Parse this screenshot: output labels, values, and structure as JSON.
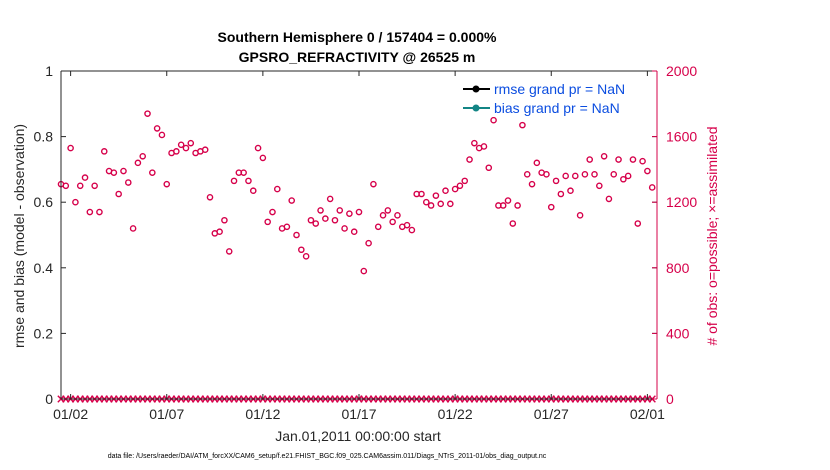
{
  "chart_data": {
    "type": "scatter",
    "title": "Southern Hemisphere 0 / 157404 = 0.000%",
    "subtitle": "GPSRO_REFRACTIVITY @ 26525 m",
    "xlabel": "Jan.01,2011 00:00:00 start",
    "ylabel": "rmse and bias (model - observation)",
    "y2label": "# of obs: o=possible; ×=assimilated",
    "footnote": "data file: /Users/raeder/DAI/ATM_forcXX/CAM6_setup/f.e21.FHIST_BGC.f09_025.CAM6assim.011/Diags_NTrS_2011-01/obs_diag_output.nc",
    "xlim": [
      0.5,
      31.5
    ],
    "ylim": [
      0,
      1
    ],
    "y2lim": [
      0,
      2000
    ],
    "xtick_values": [
      1,
      6,
      11,
      16,
      21,
      26,
      31
    ],
    "xtick_labels": [
      "01/02",
      "01/07",
      "01/12",
      "01/17",
      "01/22",
      "01/27",
      "02/01"
    ],
    "ytick_labels": [
      "0",
      "0.2",
      "0.4",
      "0.6",
      "0.8",
      "1"
    ],
    "y2tick_labels": [
      "0",
      "400",
      "800",
      "1200",
      "1600",
      "2000"
    ],
    "grid": false,
    "legend_position": "top-right",
    "legend": [
      {
        "label": "rmse grand pr = NaN",
        "color": "#000000"
      },
      {
        "label": "bias grand pr = NaN",
        "color": "#138585"
      }
    ],
    "colors": {
      "obs": "#d6004a",
      "rmse": "#000000",
      "bias": "#138585"
    },
    "series": [
      {
        "name": "o=possible",
        "axis": "right",
        "marker": "circle",
        "x": [
          0.5,
          0.75,
          1.0,
          1.25,
          1.5,
          1.75,
          2.0,
          2.25,
          2.5,
          2.75,
          3.0,
          3.25,
          3.5,
          3.75,
          4.0,
          4.25,
          4.5,
          4.75,
          5.0,
          5.25,
          5.5,
          5.75,
          6.0,
          6.25,
          6.5,
          6.75,
          7.0,
          7.25,
          7.5,
          7.75,
          8.0,
          8.25,
          8.5,
          8.75,
          9.0,
          9.25,
          9.5,
          9.75,
          10.0,
          10.25,
          10.5,
          10.75,
          11.0,
          11.25,
          11.5,
          11.75,
          12.0,
          12.25,
          12.5,
          12.75,
          13.0,
          13.25,
          13.5,
          13.75,
          14.0,
          14.25,
          14.5,
          14.75,
          15.0,
          15.25,
          15.5,
          15.75,
          16.0,
          16.25,
          16.5,
          16.75,
          17.0,
          17.25,
          17.5,
          17.75,
          18.0,
          18.25,
          18.5,
          18.75,
          19.0,
          19.25,
          19.5,
          19.75,
          20.0,
          20.25,
          20.5,
          20.75,
          21.0,
          21.25,
          21.5,
          21.75,
          22.0,
          22.25,
          22.5,
          22.75,
          23.0,
          23.25,
          23.5,
          23.75,
          24.0,
          24.25,
          24.5,
          24.75,
          25.0,
          25.25,
          25.5,
          25.75,
          26.0,
          26.25,
          26.5,
          26.75,
          27.0,
          27.25,
          27.5,
          27.75,
          28.0,
          28.25,
          28.5,
          28.75,
          29.0,
          29.25,
          29.5,
          29.75,
          30.0,
          30.25,
          30.5,
          30.75,
          31.0,
          31.25
        ],
        "y": [
          1310,
          1300,
          1530,
          1200,
          1300,
          1350,
          1140,
          1300,
          1140,
          1510,
          1390,
          1380,
          1250,
          1390,
          1320,
          1040,
          1440,
          1480,
          1740,
          1380,
          1650,
          1610,
          1310,
          1500,
          1510,
          1550,
          1530,
          1560,
          1500,
          1510,
          1520,
          1230,
          1010,
          1020,
          1090,
          900,
          1330,
          1380,
          1380,
          1330,
          1270,
          1530,
          1470,
          1080,
          1140,
          1280,
          1040,
          1050,
          1210,
          1000,
          910,
          870,
          1090,
          1070,
          1150,
          1100,
          1220,
          1090,
          1150,
          1040,
          1130,
          1020,
          1140,
          780,
          950,
          1310,
          1050,
          1120,
          1150,
          1080,
          1120,
          1050,
          1060,
          1030,
          1250,
          1250,
          1200,
          1180,
          1240,
          1190,
          1270,
          1190,
          1280,
          1300,
          1330,
          1460,
          1560,
          1530,
          1540,
          1410,
          1700,
          1180,
          1180,
          1210,
          1070,
          1180,
          1670,
          1370,
          1310,
          1440,
          1380,
          1370,
          1170,
          1330,
          1250,
          1360,
          1270,
          1360,
          1120,
          1370,
          1460,
          1370,
          1300,
          1480,
          1220,
          1370,
          1460,
          1340,
          1360,
          1460,
          1070,
          1450,
          1390,
          1290
        ]
      },
      {
        "name": "×=assimilated",
        "axis": "right",
        "marker": "x",
        "x": [
          0.5,
          0.75,
          1.0,
          1.25,
          1.5,
          1.75,
          2.0,
          2.25,
          2.5,
          2.75,
          3.0,
          3.25,
          3.5,
          3.75,
          4.0,
          4.25,
          4.5,
          4.75,
          5.0,
          5.25,
          5.5,
          5.75,
          6.0,
          6.25,
          6.5,
          6.75,
          7.0,
          7.25,
          7.5,
          7.75,
          8.0,
          8.25,
          8.5,
          8.75,
          9.0,
          9.25,
          9.5,
          9.75,
          10.0,
          10.25,
          10.5,
          10.75,
          11.0,
          11.25,
          11.5,
          11.75,
          12.0,
          12.25,
          12.5,
          12.75,
          13.0,
          13.25,
          13.5,
          13.75,
          14.0,
          14.25,
          14.5,
          14.75,
          15.0,
          15.25,
          15.5,
          15.75,
          16.0,
          16.25,
          16.5,
          16.75,
          17.0,
          17.25,
          17.5,
          17.75,
          18.0,
          18.25,
          18.5,
          18.75,
          19.0,
          19.25,
          19.5,
          19.75,
          20.0,
          20.25,
          20.5,
          20.75,
          21.0,
          21.25,
          21.5,
          21.75,
          22.0,
          22.25,
          22.5,
          22.75,
          23.0,
          23.25,
          23.5,
          23.75,
          24.0,
          24.25,
          24.5,
          24.75,
          25.0,
          25.25,
          25.5,
          25.75,
          26.0,
          26.25,
          26.5,
          26.75,
          27.0,
          27.25,
          27.5,
          27.75,
          28.0,
          28.25,
          28.5,
          28.75,
          29.0,
          29.25,
          29.5,
          29.75,
          30.0,
          30.25,
          30.5,
          30.75,
          31.0,
          31.25
        ],
        "y": [
          0,
          0,
          0,
          0,
          0,
          0,
          0,
          0,
          0,
          0,
          0,
          0,
          0,
          0,
          0,
          0,
          0,
          0,
          0,
          0,
          0,
          0,
          0,
          0,
          0,
          0,
          0,
          0,
          0,
          0,
          0,
          0,
          0,
          0,
          0,
          0,
          0,
          0,
          0,
          0,
          0,
          0,
          0,
          0,
          0,
          0,
          0,
          0,
          0,
          0,
          0,
          0,
          0,
          0,
          0,
          0,
          0,
          0,
          0,
          0,
          0,
          0,
          0,
          0,
          0,
          0,
          0,
          0,
          0,
          0,
          0,
          0,
          0,
          0,
          0,
          0,
          0,
          0,
          0,
          0,
          0,
          0,
          0,
          0,
          0,
          0,
          0,
          0,
          0,
          0,
          0,
          0,
          0,
          0,
          0,
          0,
          0,
          0,
          0,
          0,
          0,
          0,
          0,
          0,
          0,
          0,
          0,
          0,
          0,
          0,
          0,
          0,
          0,
          0,
          0,
          0,
          0,
          0,
          0,
          0,
          0,
          0,
          0,
          0
        ]
      }
    ]
  }
}
